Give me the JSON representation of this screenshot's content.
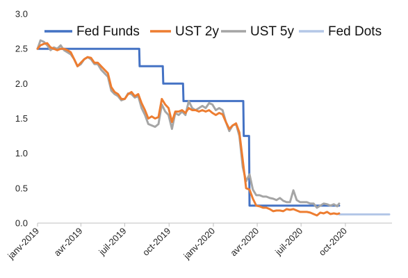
{
  "chart_data": {
    "type": "line",
    "title": "",
    "xlabel": "",
    "ylabel": "",
    "ylim": [
      0,
      3.0
    ],
    "yticks": [
      "0.0",
      "0.5",
      "1.0",
      "1.5",
      "2.0",
      "2.5",
      "3.0"
    ],
    "xlim": [
      "2019-01-01",
      "2020-12-31"
    ],
    "xticks": [
      {
        "date": "2019-01-01",
        "label": "janv-2019"
      },
      {
        "date": "2019-04-01",
        "label": "avr-2019"
      },
      {
        "date": "2019-07-01",
        "label": "juil-2019"
      },
      {
        "date": "2019-10-01",
        "label": "oct-2019"
      },
      {
        "date": "2020-01-01",
        "label": "janv-2020"
      },
      {
        "date": "2020-04-01",
        "label": "avr-2020"
      },
      {
        "date": "2020-07-01",
        "label": "juil-2020"
      },
      {
        "date": "2020-10-01",
        "label": "oct-2020"
      }
    ],
    "grid": false,
    "legend": "top",
    "series": [
      {
        "name": "Fed Funds",
        "color": "#4472c4",
        "points": [
          [
            "2019-01-01",
            2.5
          ],
          [
            "2019-07-31",
            2.5
          ],
          [
            "2019-08-01",
            2.25
          ],
          [
            "2019-09-18",
            2.25
          ],
          [
            "2019-09-19",
            2.0
          ],
          [
            "2019-10-30",
            2.0
          ],
          [
            "2019-10-31",
            1.75
          ],
          [
            "2020-03-03",
            1.75
          ],
          [
            "2020-03-04",
            1.25
          ],
          [
            "2020-03-15",
            1.25
          ],
          [
            "2020-03-16",
            0.25
          ],
          [
            "2020-09-18",
            0.25
          ]
        ]
      },
      {
        "name": "UST 2y",
        "color": "#ed7d31",
        "points": [
          [
            "2019-01-01",
            2.5
          ],
          [
            "2019-01-07",
            2.55
          ],
          [
            "2019-01-14",
            2.57
          ],
          [
            "2019-01-21",
            2.58
          ],
          [
            "2019-01-28",
            2.52
          ],
          [
            "2019-02-04",
            2.5
          ],
          [
            "2019-02-11",
            2.48
          ],
          [
            "2019-02-18",
            2.5
          ],
          [
            "2019-02-25",
            2.5
          ],
          [
            "2019-03-04",
            2.48
          ],
          [
            "2019-03-11",
            2.45
          ],
          [
            "2019-03-18",
            2.35
          ],
          [
            "2019-03-25",
            2.25
          ],
          [
            "2019-04-01",
            2.3
          ],
          [
            "2019-04-08",
            2.35
          ],
          [
            "2019-04-15",
            2.38
          ],
          [
            "2019-04-22",
            2.37
          ],
          [
            "2019-04-29",
            2.3
          ],
          [
            "2019-05-06",
            2.3
          ],
          [
            "2019-05-13",
            2.25
          ],
          [
            "2019-05-20",
            2.2
          ],
          [
            "2019-05-27",
            2.15
          ],
          [
            "2019-06-03",
            1.95
          ],
          [
            "2019-06-10",
            1.88
          ],
          [
            "2019-06-17",
            1.85
          ],
          [
            "2019-06-24",
            1.78
          ],
          [
            "2019-07-01",
            1.78
          ],
          [
            "2019-07-08",
            1.85
          ],
          [
            "2019-07-15",
            1.88
          ],
          [
            "2019-07-22",
            1.82
          ],
          [
            "2019-07-29",
            1.85
          ],
          [
            "2019-08-05",
            1.72
          ],
          [
            "2019-08-12",
            1.62
          ],
          [
            "2019-08-19",
            1.5
          ],
          [
            "2019-08-26",
            1.53
          ],
          [
            "2019-09-02",
            1.5
          ],
          [
            "2019-09-09",
            1.52
          ],
          [
            "2019-09-16",
            1.78
          ],
          [
            "2019-09-23",
            1.7
          ],
          [
            "2019-09-30",
            1.65
          ],
          [
            "2019-10-07",
            1.45
          ],
          [
            "2019-10-14",
            1.6
          ],
          [
            "2019-10-21",
            1.6
          ],
          [
            "2019-10-28",
            1.62
          ],
          [
            "2019-11-04",
            1.58
          ],
          [
            "2019-11-11",
            1.65
          ],
          [
            "2019-11-18",
            1.62
          ],
          [
            "2019-11-25",
            1.62
          ],
          [
            "2019-12-02",
            1.6
          ],
          [
            "2019-12-09",
            1.62
          ],
          [
            "2019-12-16",
            1.6
          ],
          [
            "2019-12-23",
            1.62
          ],
          [
            "2019-12-30",
            1.58
          ],
          [
            "2020-01-06",
            1.55
          ],
          [
            "2020-01-13",
            1.58
          ],
          [
            "2020-01-20",
            1.56
          ],
          [
            "2020-01-27",
            1.45
          ],
          [
            "2020-02-03",
            1.35
          ],
          [
            "2020-02-10",
            1.4
          ],
          [
            "2020-02-17",
            1.43
          ],
          [
            "2020-02-24",
            1.3
          ],
          [
            "2020-03-02",
            0.9
          ],
          [
            "2020-03-09",
            0.5
          ],
          [
            "2020-03-16",
            0.48
          ],
          [
            "2020-03-23",
            0.35
          ],
          [
            "2020-03-30",
            0.25
          ],
          [
            "2020-04-06",
            0.24
          ],
          [
            "2020-04-13",
            0.22
          ],
          [
            "2020-04-20",
            0.22
          ],
          [
            "2020-04-27",
            0.2
          ],
          [
            "2020-05-04",
            0.17
          ],
          [
            "2020-05-11",
            0.18
          ],
          [
            "2020-05-18",
            0.18
          ],
          [
            "2020-05-25",
            0.17
          ],
          [
            "2020-06-01",
            0.2
          ],
          [
            "2020-06-08",
            0.19
          ],
          [
            "2020-06-15",
            0.2
          ],
          [
            "2020-06-22",
            0.18
          ],
          [
            "2020-06-29",
            0.16
          ],
          [
            "2020-07-06",
            0.16
          ],
          [
            "2020-07-13",
            0.16
          ],
          [
            "2020-07-20",
            0.15
          ],
          [
            "2020-07-27",
            0.13
          ],
          [
            "2020-08-03",
            0.11
          ],
          [
            "2020-08-10",
            0.15
          ],
          [
            "2020-08-17",
            0.14
          ],
          [
            "2020-08-24",
            0.16
          ],
          [
            "2020-08-31",
            0.13
          ],
          [
            "2020-09-07",
            0.14
          ],
          [
            "2020-09-14",
            0.13
          ],
          [
            "2020-09-18",
            0.14
          ]
        ]
      },
      {
        "name": "UST 5y",
        "color": "#a5a5a5",
        "points": [
          [
            "2019-01-01",
            2.5
          ],
          [
            "2019-01-07",
            2.62
          ],
          [
            "2019-01-14",
            2.6
          ],
          [
            "2019-01-21",
            2.55
          ],
          [
            "2019-01-28",
            2.48
          ],
          [
            "2019-02-04",
            2.52
          ],
          [
            "2019-02-11",
            2.5
          ],
          [
            "2019-02-18",
            2.55
          ],
          [
            "2019-02-25",
            2.48
          ],
          [
            "2019-03-04",
            2.45
          ],
          [
            "2019-03-11",
            2.42
          ],
          [
            "2019-03-18",
            2.35
          ],
          [
            "2019-03-25",
            2.25
          ],
          [
            "2019-04-01",
            2.28
          ],
          [
            "2019-04-08",
            2.35
          ],
          [
            "2019-04-15",
            2.38
          ],
          [
            "2019-04-22",
            2.35
          ],
          [
            "2019-04-29",
            2.28
          ],
          [
            "2019-05-06",
            2.28
          ],
          [
            "2019-05-13",
            2.2
          ],
          [
            "2019-05-20",
            2.15
          ],
          [
            "2019-05-27",
            2.1
          ],
          [
            "2019-06-03",
            1.9
          ],
          [
            "2019-06-10",
            1.85
          ],
          [
            "2019-06-17",
            1.82
          ],
          [
            "2019-06-24",
            1.76
          ],
          [
            "2019-07-01",
            1.78
          ],
          [
            "2019-07-08",
            1.86
          ],
          [
            "2019-07-15",
            1.85
          ],
          [
            "2019-07-22",
            1.8
          ],
          [
            "2019-07-29",
            1.82
          ],
          [
            "2019-08-05",
            1.65
          ],
          [
            "2019-08-12",
            1.55
          ],
          [
            "2019-08-19",
            1.42
          ],
          [
            "2019-08-26",
            1.4
          ],
          [
            "2019-09-02",
            1.38
          ],
          [
            "2019-09-09",
            1.42
          ],
          [
            "2019-09-16",
            1.7
          ],
          [
            "2019-09-23",
            1.6
          ],
          [
            "2019-09-30",
            1.55
          ],
          [
            "2019-10-07",
            1.35
          ],
          [
            "2019-10-14",
            1.58
          ],
          [
            "2019-10-21",
            1.55
          ],
          [
            "2019-10-28",
            1.6
          ],
          [
            "2019-11-04",
            1.55
          ],
          [
            "2019-11-11",
            1.75
          ],
          [
            "2019-11-18",
            1.65
          ],
          [
            "2019-11-25",
            1.62
          ],
          [
            "2019-12-02",
            1.65
          ],
          [
            "2019-12-09",
            1.68
          ],
          [
            "2019-12-16",
            1.65
          ],
          [
            "2019-12-23",
            1.72
          ],
          [
            "2019-12-30",
            1.7
          ],
          [
            "2020-01-06",
            1.62
          ],
          [
            "2020-01-13",
            1.65
          ],
          [
            "2020-01-20",
            1.62
          ],
          [
            "2020-01-27",
            1.45
          ],
          [
            "2020-02-03",
            1.32
          ],
          [
            "2020-02-10",
            1.4
          ],
          [
            "2020-02-17",
            1.42
          ],
          [
            "2020-02-24",
            1.25
          ],
          [
            "2020-03-02",
            0.8
          ],
          [
            "2020-03-09",
            0.6
          ],
          [
            "2020-03-16",
            0.7
          ],
          [
            "2020-03-23",
            0.48
          ],
          [
            "2020-03-30",
            0.4
          ],
          [
            "2020-04-06",
            0.4
          ],
          [
            "2020-04-13",
            0.38
          ],
          [
            "2020-04-20",
            0.38
          ],
          [
            "2020-04-27",
            0.36
          ],
          [
            "2020-05-04",
            0.35
          ],
          [
            "2020-05-11",
            0.33
          ],
          [
            "2020-05-18",
            0.36
          ],
          [
            "2020-05-25",
            0.32
          ],
          [
            "2020-06-01",
            0.3
          ],
          [
            "2020-06-08",
            0.3
          ],
          [
            "2020-06-15",
            0.47
          ],
          [
            "2020-06-22",
            0.33
          ],
          [
            "2020-06-29",
            0.3
          ],
          [
            "2020-07-06",
            0.3
          ],
          [
            "2020-07-13",
            0.3
          ],
          [
            "2020-07-20",
            0.28
          ],
          [
            "2020-07-27",
            0.28
          ],
          [
            "2020-08-03",
            0.22
          ],
          [
            "2020-08-10",
            0.25
          ],
          [
            "2020-08-17",
            0.28
          ],
          [
            "2020-08-24",
            0.27
          ],
          [
            "2020-08-31",
            0.25
          ],
          [
            "2020-09-07",
            0.27
          ],
          [
            "2020-09-14",
            0.24
          ],
          [
            "2020-09-18",
            0.28
          ]
        ]
      },
      {
        "name": "Fed Dots",
        "color": "#b4c7e7",
        "points": [
          [
            "2020-09-18",
            0.125
          ],
          [
            "2020-12-31",
            0.125
          ]
        ]
      }
    ]
  }
}
